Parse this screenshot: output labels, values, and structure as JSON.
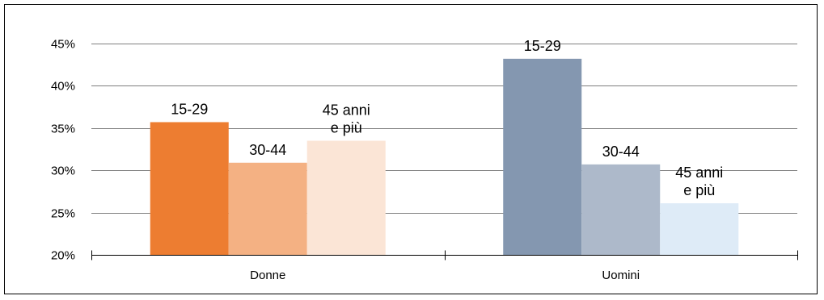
{
  "chart_data": {
    "type": "bar",
    "title": "",
    "xlabel": "",
    "ylabel": "",
    "categories": [
      "Donne",
      "Uomini"
    ],
    "ylim": [
      20,
      45
    ],
    "yticks": [
      20,
      25,
      30,
      35,
      40,
      45
    ],
    "ytick_labels": [
      "20%",
      "25%",
      "30%",
      "35%",
      "40%",
      "45%"
    ],
    "grid": true,
    "legend": "none",
    "groups": [
      {
        "category": "Donne",
        "bars": [
          {
            "label": "15-29",
            "value": 35.7,
            "color": "#ED7D31"
          },
          {
            "label": "30-44",
            "value": 30.9,
            "color": "#F4B183"
          },
          {
            "label": "45 anni e più",
            "label_lines": [
              "45 anni",
              "e più"
            ],
            "value": 33.5,
            "color": "#FBE5D6"
          }
        ]
      },
      {
        "category": "Uomini",
        "bars": [
          {
            "label": "15-29",
            "value": 43.2,
            "color": "#8497B0"
          },
          {
            "label": "30-44",
            "value": 30.7,
            "color": "#ADB9CA"
          },
          {
            "label": "45 anni e più",
            "label_lines": [
              "45 anni",
              "e più"
            ],
            "value": 26.1,
            "color": "#DEEBF7"
          }
        ]
      }
    ]
  }
}
